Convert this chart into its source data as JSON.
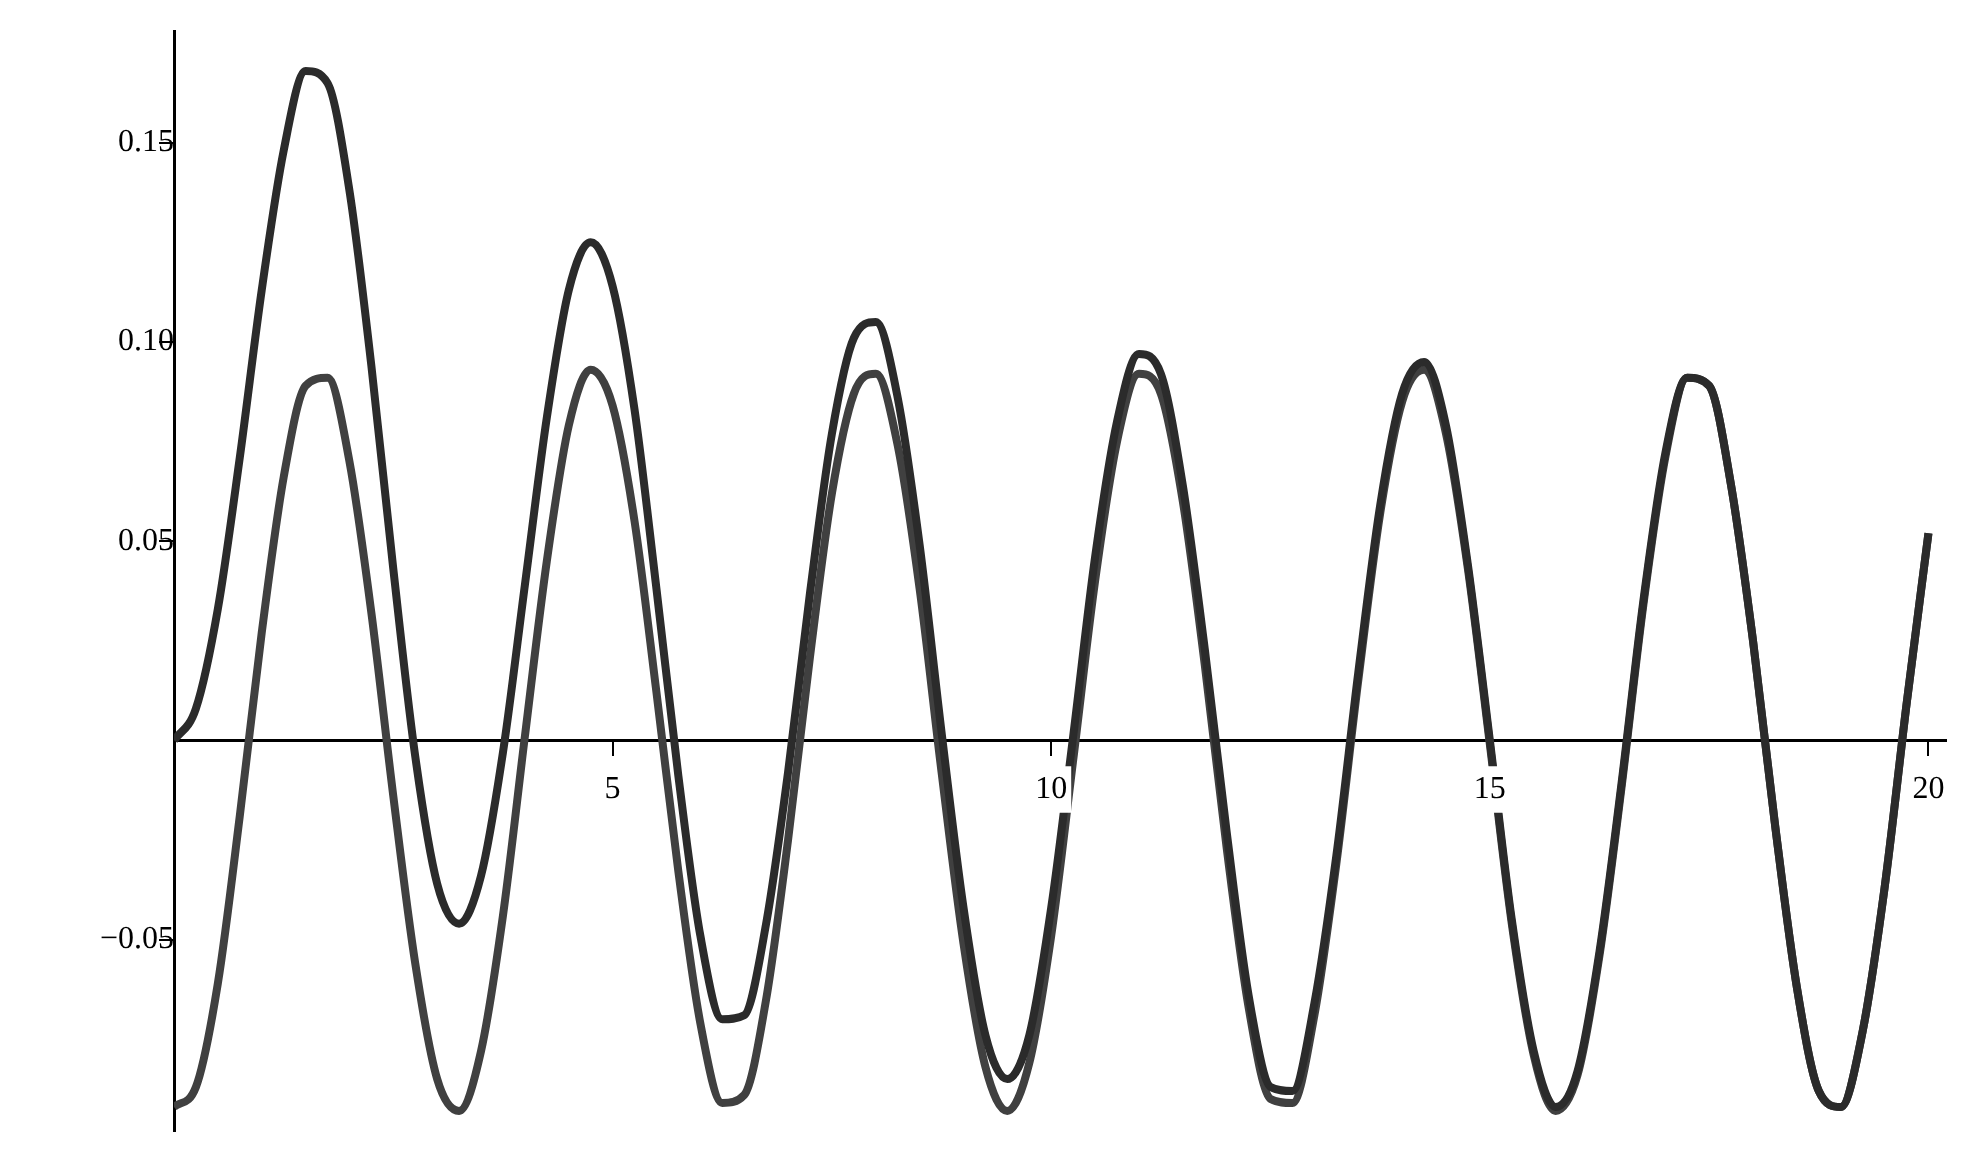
{
  "chart_data": {
    "type": "line",
    "x": [
      0,
      0.25,
      0.5,
      0.75,
      1,
      1.25,
      1.5,
      1.75,
      2,
      2.25,
      2.5,
      2.75,
      3,
      3.25,
      3.5,
      3.75,
      4,
      4.25,
      4.5,
      4.75,
      5,
      5.25,
      5.5,
      5.75,
      6,
      6.25,
      6.5,
      6.75,
      7,
      7.25,
      7.5,
      7.75,
      8,
      8.25,
      8.5,
      8.75,
      9,
      9.25,
      9.5,
      9.75,
      10,
      10.25,
      10.5,
      10.75,
      11,
      11.25,
      11.5,
      11.75,
      12,
      12.25,
      12.5,
      12.75,
      13,
      13.25,
      13.5,
      13.75,
      14,
      14.25,
      14.5,
      14.75,
      15,
      15.25,
      15.5,
      15.75,
      16,
      16.25,
      16.5,
      16.75,
      17,
      17.25,
      17.5,
      17.75,
      18,
      18.25,
      18.5,
      18.75,
      19,
      19.25,
      19.5,
      19.75,
      20
    ],
    "series": [
      {
        "color": "#2b2b2b",
        "values": [
          0,
          0.008,
          0.033,
          0.071,
          0.113,
          0.148,
          0.168,
          0.165,
          0.138,
          0.094,
          0.043,
          -0.004,
          -0.036,
          -0.046,
          -0.034,
          -0.003,
          0.039,
          0.081,
          0.113,
          0.125,
          0.114,
          0.083,
          0.038,
          -0.009,
          -0.049,
          -0.07,
          -0.069,
          -0.046,
          -0.008,
          0.037,
          0.077,
          0.101,
          0.105,
          0.086,
          0.049,
          0.002,
          -0.042,
          -0.074,
          -0.085,
          -0.074,
          -0.042,
          0.001,
          0.046,
          0.08,
          0.097,
          0.092,
          0.064,
          0.023,
          -0.023,
          -0.064,
          -0.087,
          -0.088,
          -0.066,
          -0.029,
          0.017,
          0.059,
          0.087,
          0.095,
          0.079,
          0.044,
          0,
          -0.045,
          -0.078,
          -0.092,
          -0.083,
          -0.053,
          -0.011,
          0.035,
          0.072,
          0.091,
          0.089,
          0.064,
          0.025,
          -0.021,
          -0.062,
          -0.088,
          -0.092,
          -0.073,
          -0.037,
          0.009,
          0.052
        ]
      },
      {
        "color": "#404040",
        "values": [
          -0.092,
          -0.087,
          -0.061,
          -0.019,
          0.027,
          0.066,
          0.089,
          0.091,
          0.07,
          0.032,
          -0.014,
          -0.056,
          -0.085,
          -0.093,
          -0.078,
          -0.044,
          0.001,
          0.045,
          0.079,
          0.093,
          0.084,
          0.055,
          0.012,
          -0.033,
          -0.071,
          -0.091,
          -0.089,
          -0.065,
          -0.025,
          0.021,
          0.062,
          0.087,
          0.092,
          0.074,
          0.038,
          -0.008,
          -0.051,
          -0.082,
          -0.093,
          -0.081,
          -0.049,
          -0.005,
          0.04,
          0.075,
          0.092,
          0.087,
          0.06,
          0.019,
          -0.027,
          -0.067,
          -0.09,
          -0.091,
          -0.069,
          -0.031,
          0.015,
          0.057,
          0.085,
          0.093,
          0.077,
          0.043,
          -0.001,
          -0.046,
          -0.079,
          -0.093,
          -0.084,
          -0.054,
          -0.012,
          0.034,
          0.071,
          0.091,
          0.089,
          0.064,
          0.025,
          -0.021,
          -0.062,
          -0.088,
          -0.092,
          -0.073,
          -0.037,
          0.009,
          0.052
        ]
      }
    ],
    "xlim": [
      0,
      20.2
    ],
    "ylim": [
      -0.098,
      0.178
    ],
    "xticks": [
      5,
      10,
      15,
      20
    ],
    "yticks": [
      {
        "value": -0.05,
        "label": "−0.05"
      },
      0.05,
      {
        "value": 0.1,
        "label": "0.10"
      },
      0.15
    ],
    "grid": false,
    "legend": false
  }
}
